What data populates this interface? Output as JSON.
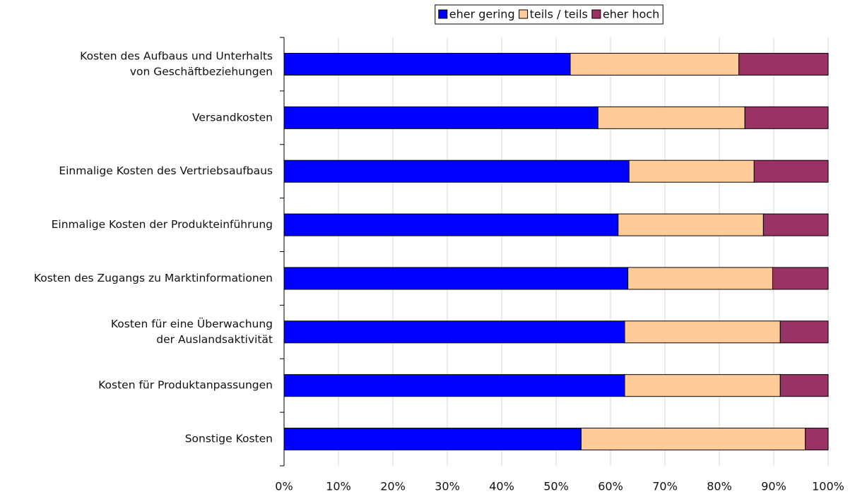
{
  "chart_data": {
    "type": "bar",
    "orientation": "horizontal",
    "stacked": true,
    "percent_stacked": true,
    "categories": [
      [
        "Kosten des Aufbaus und Unterhalts",
        "von Geschäftbeziehungen"
      ],
      [
        "Versandkosten"
      ],
      [
        "Einmalige Kosten des Vertriebsaufbaus"
      ],
      [
        "Einmalige Kosten der Produkteinführung"
      ],
      [
        "Kosten des Zugangs zu Marktinformationen"
      ],
      [
        "Kosten für eine Überwachung",
        "der Auslandsaktivität"
      ],
      [
        "Kosten für Produktanpassungen"
      ],
      [
        "Sonstige Kosten"
      ]
    ],
    "series": [
      {
        "name": "eher gering",
        "color": "#0000ff",
        "values": [
          52.6,
          57.7,
          63.4,
          61.4,
          63.2,
          62.6,
          62.6,
          54.6
        ]
      },
      {
        "name": "teils / teils",
        "color": "#ffcc99",
        "values": [
          31.0,
          27.0,
          23.0,
          26.7,
          26.6,
          28.6,
          28.6,
          41.2
        ]
      },
      {
        "name": "eher hoch",
        "color": "#993366",
        "values": [
          16.4,
          15.3,
          13.6,
          11.9,
          10.2,
          8.8,
          8.8,
          4.2
        ]
      }
    ],
    "xlim": [
      0,
      100
    ],
    "x_ticks": [
      "0%",
      "10%",
      "20%",
      "30%",
      "40%",
      "50%",
      "60%",
      "70%",
      "80%",
      "90%",
      "100%"
    ],
    "grid": true,
    "legend_position": "top"
  }
}
